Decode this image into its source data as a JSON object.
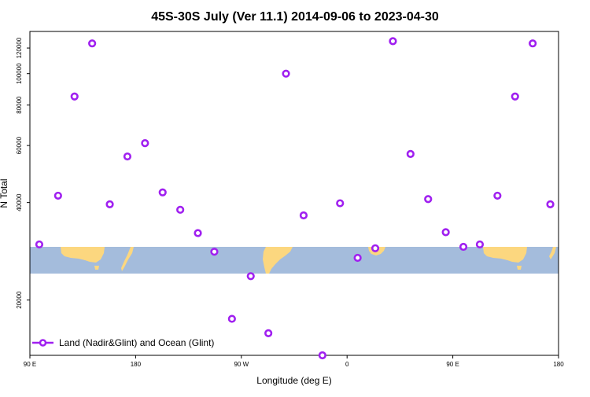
{
  "chart_data": {
    "type": "scatter",
    "title": "45S-30S July (Ver 11.1)   2014-09-06 to 2023-04-30",
    "xlabel": "Longitude (deg E)",
    "ylabel": "N Total",
    "x_ticks": [
      {
        "value": 90,
        "label": "90 E"
      },
      {
        "value": 180,
        "label": "180"
      },
      {
        "value": 270,
        "label": "90 W"
      },
      {
        "value": 360,
        "label": "0"
      },
      {
        "value": 450,
        "label": "90 E"
      },
      {
        "value": 540,
        "label": "180"
      }
    ],
    "y_ticks": [
      {
        "value": 20000,
        "label": "20000"
      },
      {
        "value": 40000,
        "label": "40000"
      },
      {
        "value": 60000,
        "label": "60000"
      },
      {
        "value": 80000,
        "label": "80000"
      },
      {
        "value": 100000,
        "label": "100000"
      },
      {
        "value": 120000,
        "label": "120000"
      }
    ],
    "xlim": [
      90,
      540
    ],
    "ylim": [
      13500,
      135000
    ],
    "y_scale": "log",
    "grid": false,
    "legend_position": "bottom-left",
    "marker_color": "#a020f0",
    "map_ocean_color": "#a4bcdc",
    "map_land_color": "#fcd77f",
    "series": [
      {
        "name": "Land (Nadir&Glint) and Ocean (Glint)",
        "x": [
          98,
          114,
          128,
          143,
          158,
          173,
          188,
          203,
          218,
          233,
          247,
          262,
          278,
          293,
          308,
          323,
          339,
          354,
          369,
          384,
          399,
          414,
          429,
          444,
          459,
          473,
          488,
          503,
          518,
          533
        ],
        "y": [
          29700,
          42000,
          85000,
          124000,
          39500,
          55500,
          61000,
          43000,
          38000,
          32200,
          28200,
          17500,
          23700,
          15800,
          100000,
          36500,
          13500,
          39800,
          27000,
          28900,
          126000,
          56500,
          41000,
          32400,
          29200,
          29700,
          42000,
          85000,
          124000,
          39500
        ]
      }
    ]
  }
}
